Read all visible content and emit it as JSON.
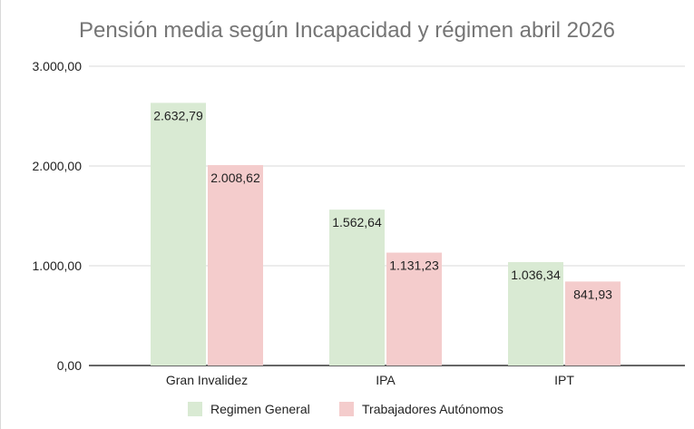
{
  "chart_data": {
    "type": "bar",
    "title": "Pensión media según Incapacidad y régimen abril 2026",
    "xlabel": "",
    "ylabel": "",
    "categories": [
      "Gran Invalidez",
      "IPA",
      "IPT"
    ],
    "series": [
      {
        "name": "Regimen General",
        "color": "#d9ead3",
        "values": [
          2632.79,
          1562.64,
          1036.34
        ],
        "labels": [
          "2.632,79",
          "1.562,64",
          "1.036,34"
        ]
      },
      {
        "name": "Trabajadores Autónomos",
        "color": "#f4cccc",
        "values": [
          2008.62,
          1131.23,
          841.93
        ],
        "labels": [
          "2.008,62",
          "1.131,23",
          "841,93"
        ]
      }
    ],
    "ylim": [
      0,
      3000
    ],
    "yticks": [
      0,
      1000,
      2000,
      3000
    ],
    "ytick_labels": [
      "0,00",
      "1.000,00",
      "2.000,00",
      "3.000,00"
    ],
    "grid": true,
    "legend_position": "bottom"
  }
}
